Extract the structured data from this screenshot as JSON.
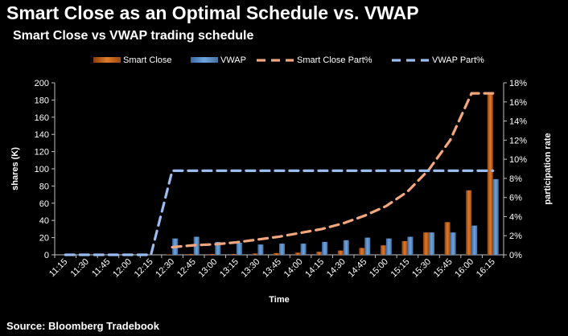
{
  "page": {
    "title": "Smart Close as an Optimal Schedule vs. VWAP",
    "subtitle": "Smart Close vs VWAP trading schedule",
    "source": "Source: Bloomberg Tradebook"
  },
  "colors": {
    "smart_close": "#e07a2a",
    "vwap": "#6fa4dc",
    "smart_close_line": "#f4a77e",
    "vwap_line": "#9bbcf0",
    "axis": "#bfbfbf"
  },
  "chart_data": {
    "type": "bar",
    "title": "Smart Close vs VWAP trading schedule",
    "xlabel": "Time",
    "ylabel": "shares (K)",
    "y2label": "participation rate",
    "ylim": [
      0,
      200
    ],
    "y2lim": [
      0,
      18
    ],
    "yticks": [
      "0",
      "20",
      "40",
      "60",
      "80",
      "100",
      "120",
      "140",
      "160",
      "180",
      "200"
    ],
    "y2ticks": [
      "0%",
      "2%",
      "4%",
      "6%",
      "8%",
      "10%",
      "12%",
      "14%",
      "16%",
      "18%"
    ],
    "categories": [
      "11:15",
      "11:30",
      "11:45",
      "12:00",
      "12:15",
      "12:30",
      "12:45",
      "13:00",
      "13:15",
      "13:30",
      "13:45",
      "14:00",
      "14:15",
      "14:30",
      "14:45",
      "15:00",
      "15:15",
      "15:30",
      "15:45",
      "16:00",
      "16:15"
    ],
    "legend_position": "top",
    "series": [
      {
        "name": "Smart Close",
        "kind": "bar",
        "values": [
          0,
          0,
          0,
          0,
          0,
          0.5,
          1,
          1,
          1,
          1.5,
          2,
          2.5,
          3.5,
          5,
          8,
          11,
          16,
          26,
          38,
          75,
          187
        ]
      },
      {
        "name": "VWAP",
        "kind": "bar",
        "values": [
          0,
          0,
          0,
          0,
          0,
          19,
          21,
          15,
          14,
          12,
          13,
          13,
          15,
          17,
          20,
          19,
          21,
          26,
          26,
          34,
          88
        ]
      },
      {
        "name": "Smart Close Part%",
        "kind": "line",
        "axis": "right",
        "values": [
          null,
          null,
          null,
          null,
          null,
          0.8,
          1.0,
          1.1,
          1.3,
          1.6,
          1.9,
          2.3,
          2.7,
          3.3,
          4.1,
          5.1,
          6.6,
          8.9,
          12.0,
          16.9,
          16.9
        ]
      },
      {
        "name": "VWAP Part%",
        "kind": "line",
        "axis": "right",
        "values": [
          0,
          0,
          0,
          0,
          0,
          8.8,
          8.8,
          8.8,
          8.8,
          8.8,
          8.8,
          8.8,
          8.8,
          8.8,
          8.8,
          8.8,
          8.8,
          8.8,
          8.8,
          8.8,
          8.8
        ]
      }
    ]
  }
}
